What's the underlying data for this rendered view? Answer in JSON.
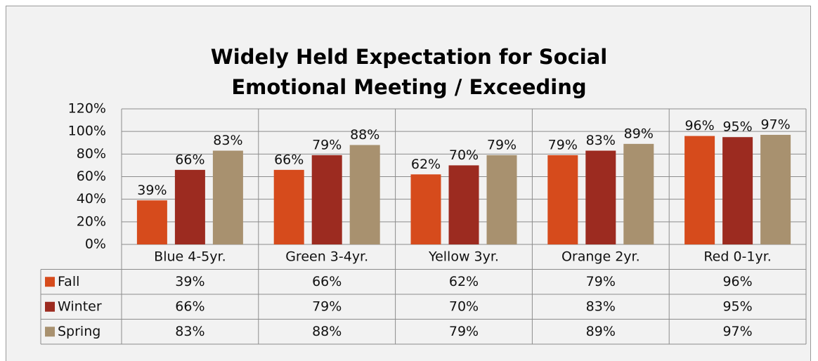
{
  "chart_data": {
    "type": "bar",
    "title": "Widely Held Expectation for Social Emotional Meeting / Exceeding",
    "categories": [
      "Blue 4-5yr.",
      "Green 3-4yr.",
      "Yellow 3yr.",
      "Orange 2yr.",
      "Red 0-1yr."
    ],
    "series": [
      {
        "name": "Fall",
        "color": "#d64b1c",
        "values": [
          39,
          66,
          62,
          79,
          96
        ],
        "value_labels": [
          "39%",
          "66%",
          "62%",
          "79%",
          "96%"
        ]
      },
      {
        "name": "Winter",
        "color": "#9c2b20",
        "values": [
          66,
          79,
          70,
          83,
          95
        ],
        "value_labels": [
          "66%",
          "79%",
          "70%",
          "83%",
          "95%"
        ]
      },
      {
        "name": "Spring",
        "color": "#a8916f",
        "values": [
          83,
          88,
          79,
          89,
          97
        ],
        "value_labels": [
          "83%",
          "88%",
          "79%",
          "89%",
          "97%"
        ]
      }
    ],
    "ylim": [
      0,
      120
    ],
    "yticks": [
      {
        "value": 0,
        "label": "0%"
      },
      {
        "value": 20,
        "label": "20%"
      },
      {
        "value": 40,
        "label": "40%"
      },
      {
        "value": 60,
        "label": "60%"
      },
      {
        "value": 80,
        "label": "80%"
      },
      {
        "value": 100,
        "label": "100%"
      },
      {
        "value": 120,
        "label": "120%"
      }
    ],
    "grid": true,
    "data_table": true
  }
}
